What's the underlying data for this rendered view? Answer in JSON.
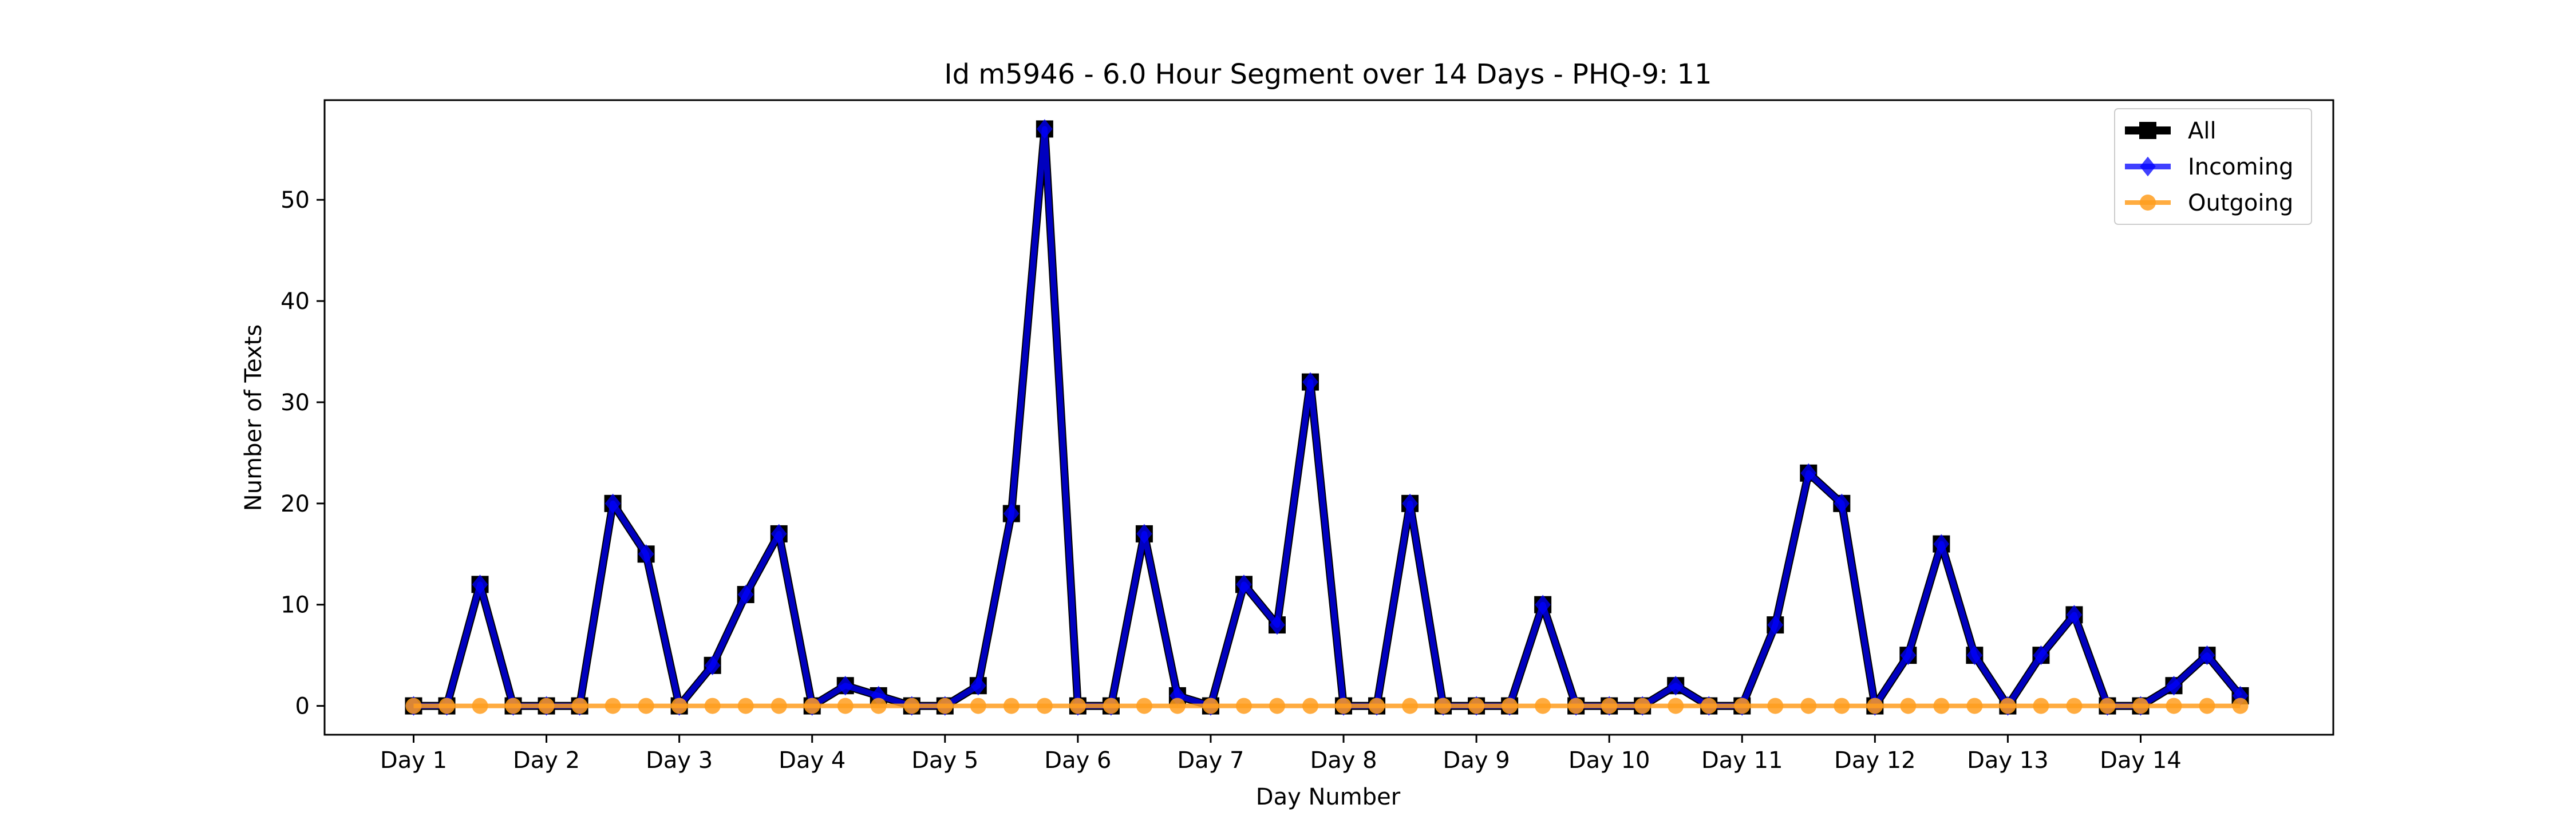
{
  "chart_data": {
    "type": "line",
    "title": "Id m5946 - 6.0 Hour Segment over 14 Days - PHQ-9: 11",
    "xlabel": "Day Number",
    "ylabel": "Number of Texts",
    "x": [
      1,
      1.25,
      1.5,
      1.75,
      2,
      2.25,
      2.5,
      2.75,
      3,
      3.25,
      3.5,
      3.75,
      4,
      4.25,
      4.5,
      4.75,
      5,
      5.25,
      5.5,
      5.75,
      6,
      6.25,
      6.5,
      6.75,
      7,
      7.25,
      7.5,
      7.75,
      8,
      8.25,
      8.5,
      8.75,
      9,
      9.25,
      9.5,
      9.75,
      10,
      10.25,
      10.5,
      10.75,
      11,
      11.25,
      11.5,
      11.75,
      12,
      12.25,
      12.5,
      12.75,
      13,
      13.25,
      13.5,
      13.75,
      14,
      14.25,
      14.5,
      14.75
    ],
    "xticks": [
      "Day 1",
      "Day 2",
      "Day 3",
      "Day 4",
      "Day 5",
      "Day 6",
      "Day 7",
      "Day 8",
      "Day 9",
      "Day 10",
      "Day 11",
      "Day 12",
      "Day 13",
      "Day 14"
    ],
    "xlim": [
      0.33,
      15.45
    ],
    "ylim": [
      -2.85,
      59.85
    ],
    "yticks": [
      0,
      10,
      20,
      30,
      40,
      50
    ],
    "grid": false,
    "legend_position": "top-right",
    "series": [
      {
        "name": "All",
        "color": "#000000",
        "marker": "square",
        "values": [
          0,
          0,
          12,
          0,
          0,
          0,
          20,
          15,
          0,
          4,
          11,
          17,
          0,
          2,
          1,
          0,
          0,
          2,
          19,
          57,
          0,
          0,
          17,
          1,
          0,
          12,
          8,
          32,
          0,
          0,
          20,
          0,
          0,
          0,
          10,
          0,
          0,
          0,
          2,
          0,
          0,
          8,
          23,
          20,
          0,
          5,
          16,
          5,
          0,
          5,
          9,
          0,
          0,
          2,
          5,
          1
        ]
      },
      {
        "name": "Incoming",
        "color": "#0000ff",
        "marker": "diamond",
        "values": [
          0,
          0,
          12,
          0,
          0,
          0,
          20,
          15,
          0,
          4,
          11,
          17,
          0,
          2,
          1,
          0,
          0,
          2,
          19,
          57,
          0,
          0,
          17,
          1,
          0,
          12,
          8,
          32,
          0,
          0,
          20,
          0,
          0,
          0,
          10,
          0,
          0,
          0,
          2,
          0,
          0,
          8,
          23,
          20,
          0,
          5,
          16,
          5,
          0,
          5,
          9,
          0,
          0,
          2,
          5,
          1
        ]
      },
      {
        "name": "Outgoing",
        "color": "#ff9e1f",
        "marker": "circle",
        "values": [
          0,
          0,
          0,
          0,
          0,
          0,
          0,
          0,
          0,
          0,
          0,
          0,
          0,
          0,
          0,
          0,
          0,
          0,
          0,
          0,
          0,
          0,
          0,
          0,
          0,
          0,
          0,
          0,
          0,
          0,
          0,
          0,
          0,
          0,
          0,
          0,
          0,
          0,
          0,
          0,
          0,
          0,
          0,
          0,
          0,
          0,
          0,
          0,
          0,
          0,
          0,
          0,
          0,
          0,
          0,
          0
        ]
      }
    ]
  }
}
